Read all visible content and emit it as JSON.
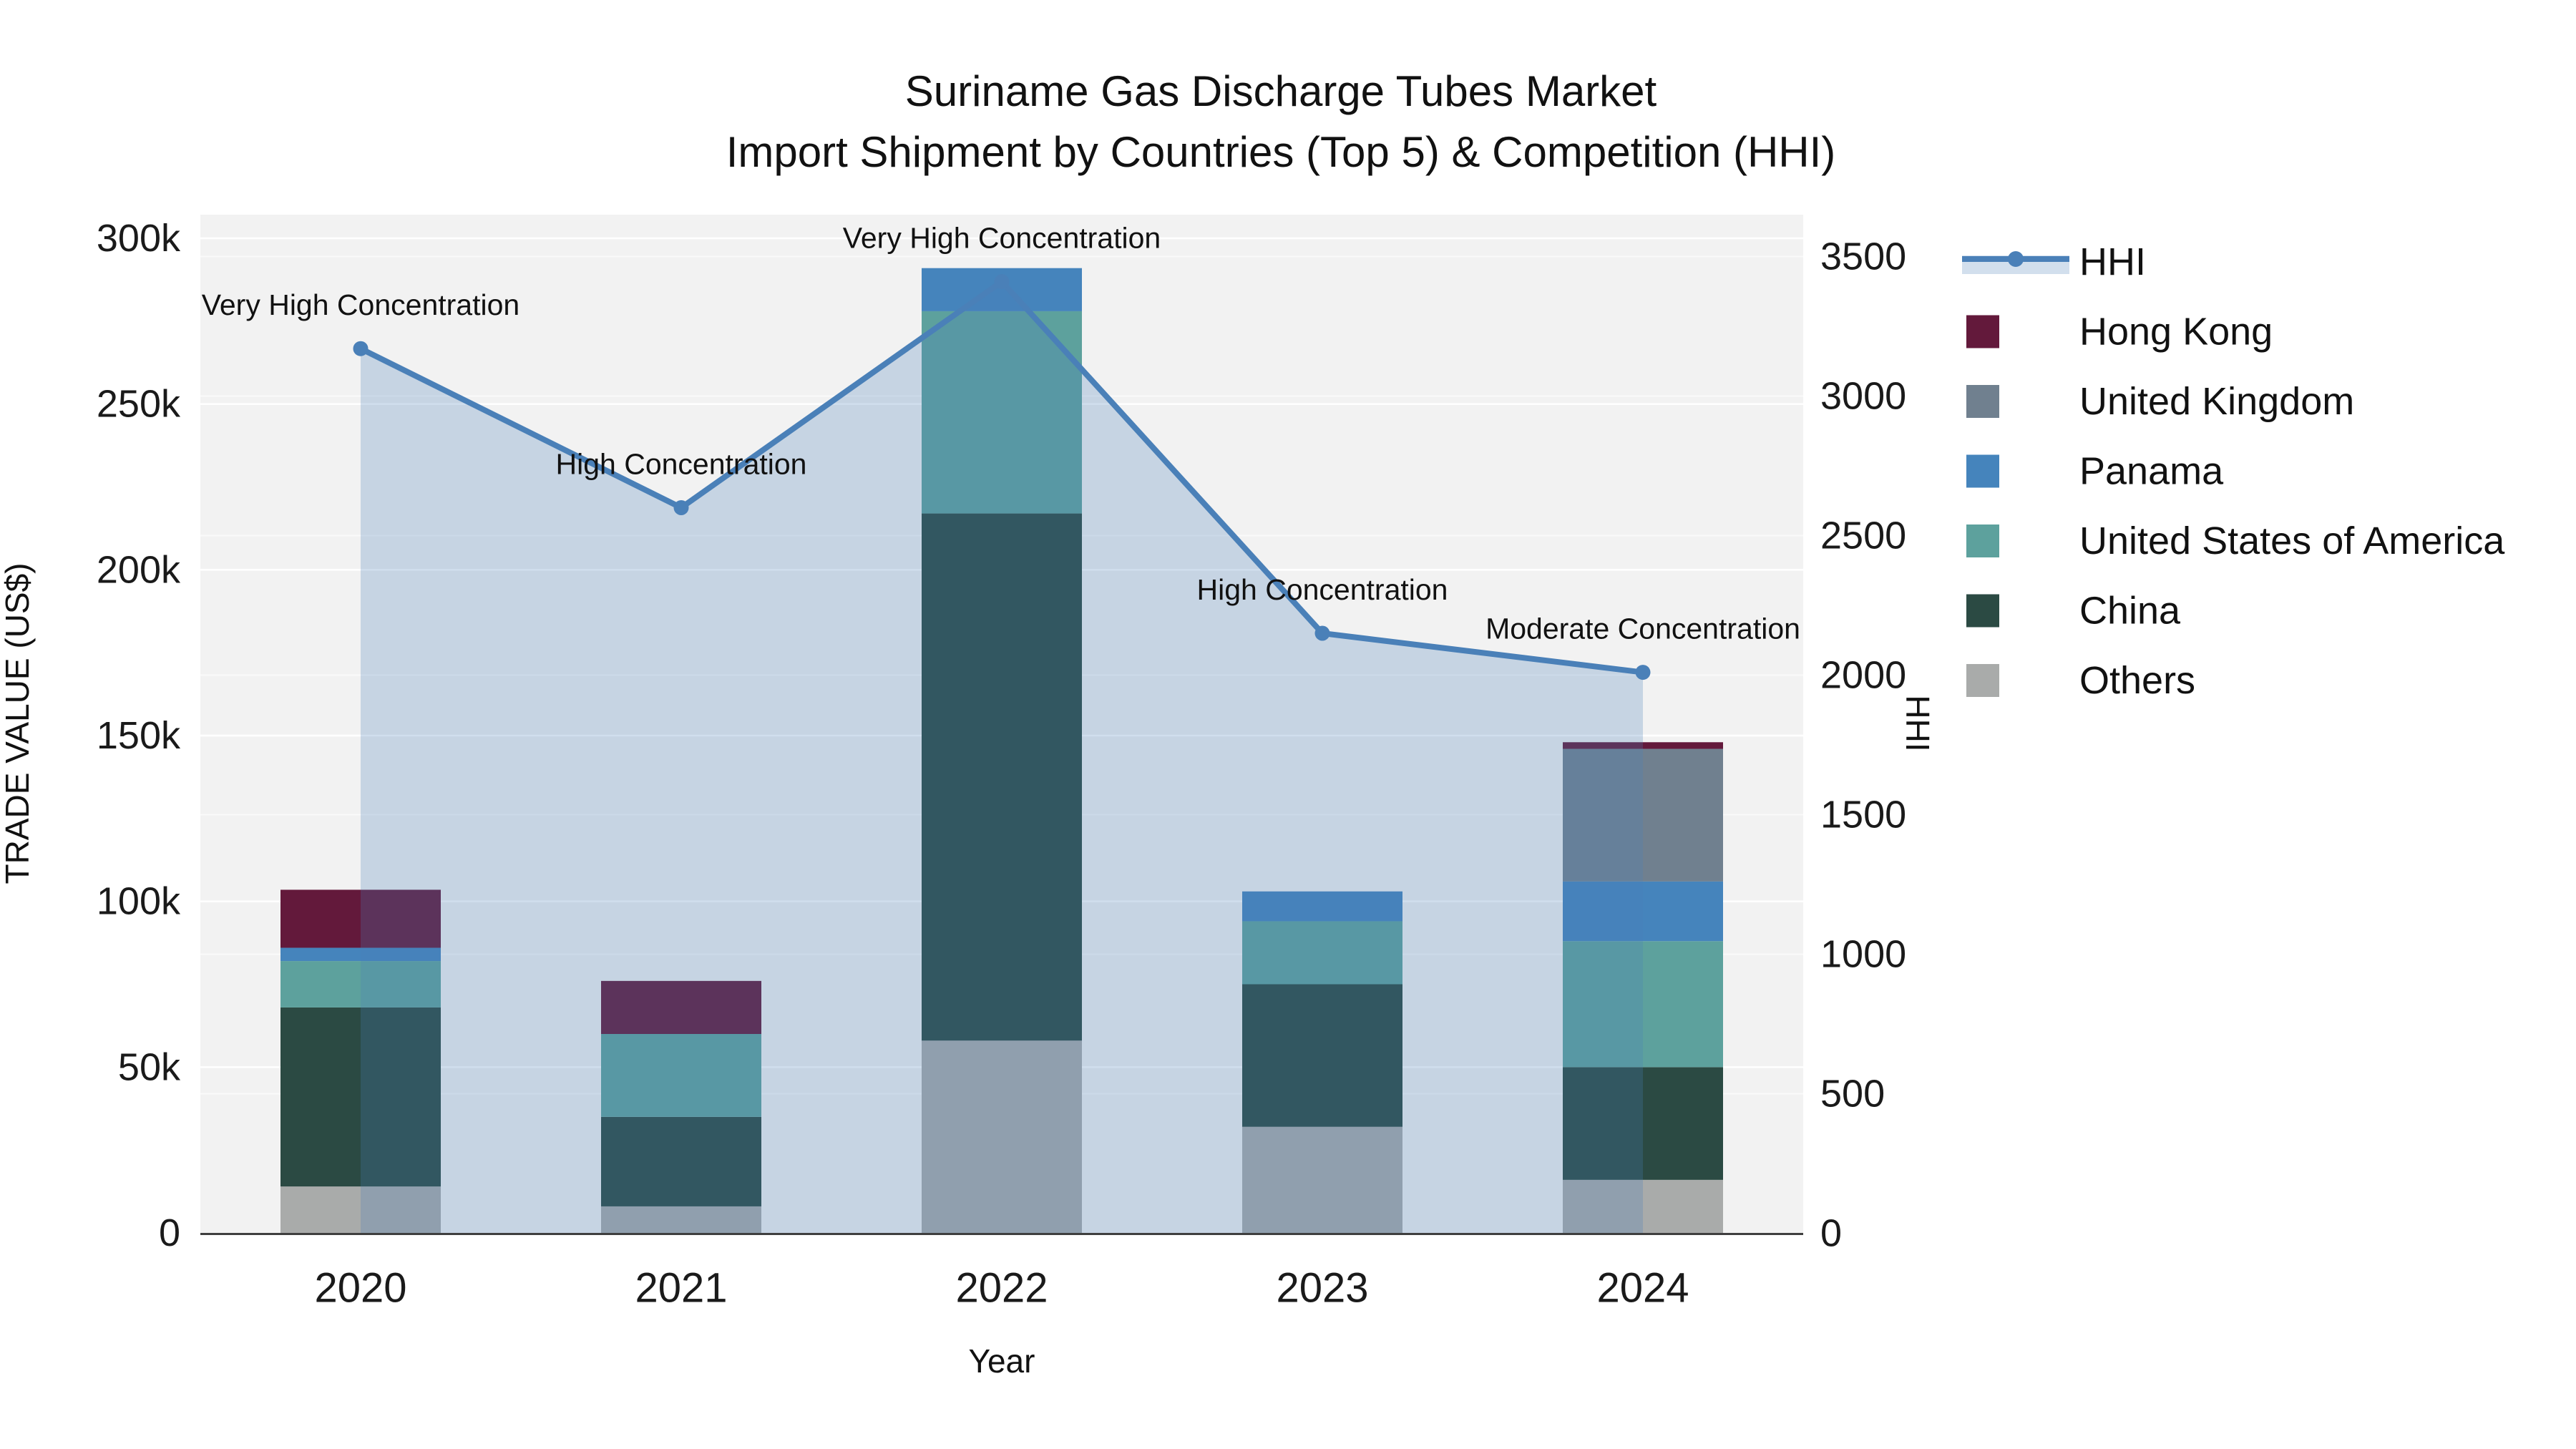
{
  "title": {
    "line1": "Suriname Gas Discharge Tubes Market",
    "line2": "Import Shipment by Countries (Top 5) & Competition (HHI)"
  },
  "axes": {
    "x": {
      "title": "Year",
      "categories": [
        "2020",
        "2021",
        "2022",
        "2023",
        "2024"
      ]
    },
    "y_left": {
      "title": "TRADE VALUE (US$)",
      "tick_labels": [
        "0",
        "50k",
        "100k",
        "150k",
        "200k",
        "250k",
        "300k"
      ],
      "max": 300000
    },
    "y_right": {
      "title": "HHI",
      "tick_labels": [
        "0",
        "500",
        "1000",
        "1500",
        "2000",
        "2500",
        "3000",
        "3500"
      ],
      "max": 3500
    }
  },
  "legend": {
    "items": [
      {
        "label": "HHI",
        "type": "line",
        "color": "#4a80b8"
      },
      {
        "label": "Hong Kong",
        "type": "swatch",
        "color": "#63193b"
      },
      {
        "label": "United Kingdom",
        "type": "swatch",
        "color": "#70808f"
      },
      {
        "label": "Panama",
        "type": "swatch",
        "color": "#4584bc"
      },
      {
        "label": "United States of America",
        "type": "swatch",
        "color": "#5da19d"
      },
      {
        "label": "China",
        "type": "swatch",
        "color": "#2b4a43"
      },
      {
        "label": "Others",
        "type": "swatch",
        "color": "#a9abaa"
      }
    ]
  },
  "chart_data": {
    "type": "bar",
    "subtype": "stacked-bar-with-line",
    "categories": [
      "2020",
      "2021",
      "2022",
      "2023",
      "2024"
    ],
    "bar_value_unit": "US$",
    "series": [
      {
        "name": "Others",
        "color": "#a9abaa",
        "values": [
          14000,
          8000,
          58000,
          32000,
          16000
        ]
      },
      {
        "name": "China",
        "color": "#2b4a43",
        "values": [
          54000,
          27000,
          159000,
          43000,
          34000
        ]
      },
      {
        "name": "United States of America",
        "color": "#5da19d",
        "values": [
          14000,
          25000,
          61000,
          19000,
          38000
        ]
      },
      {
        "name": "Panama",
        "color": "#4584bc",
        "values": [
          4000,
          0,
          13000,
          9000,
          18000
        ]
      },
      {
        "name": "United Kingdom",
        "color": "#70808f",
        "values": [
          0,
          0,
          0,
          0,
          40000
        ]
      },
      {
        "name": "Hong Kong",
        "color": "#63193b",
        "values": [
          17500,
          16000,
          0,
          0,
          2000
        ]
      }
    ],
    "line": {
      "name": "HHI",
      "color": "#4a80b8",
      "axis": "right",
      "values": [
        3170,
        2600,
        3410,
        2150,
        2010
      ],
      "area_fill": true,
      "area_opacity": 0.26
    },
    "annotations": [
      "Very High Concentration",
      "High Concentration",
      "Very High Concentration",
      "High Concentration",
      "Moderate Concentration"
    ],
    "xlabel": "Year",
    "ylabel_left": "TRADE VALUE (US$)",
    "ylabel_right": "HHI",
    "ylim_left": [
      0,
      300000
    ],
    "ylim_right": [
      0,
      3500
    ],
    "grid": true,
    "plot_bg": "#f2f2f2",
    "legend_position": "right"
  }
}
